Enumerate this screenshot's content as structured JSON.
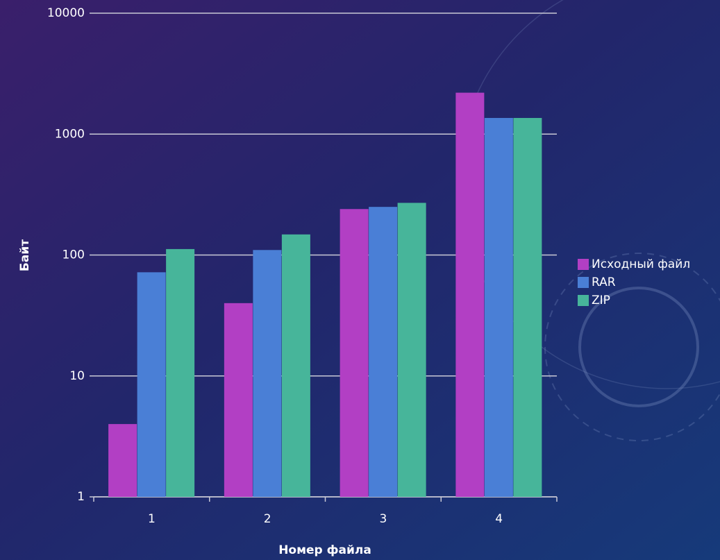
{
  "chart_data": {
    "type": "bar",
    "x_label": "Номер файла",
    "y_label": "Байт",
    "categories": [
      "1",
      "2",
      "3",
      "4"
    ],
    "series": [
      {
        "name": "Исходный файл",
        "color": "#b23fc4",
        "values": [
          4,
          40,
          240,
          2200
        ]
      },
      {
        "name": "RAR",
        "color": "#4a7fd6",
        "values": [
          72,
          110,
          250,
          1360
        ]
      },
      {
        "name": "ZIP",
        "color": "#47b59a",
        "values": [
          112,
          148,
          270,
          1360
        ]
      }
    ],
    "ylim": [
      1,
      10000
    ],
    "yticks": [
      1,
      10,
      100,
      1000,
      10000
    ],
    "log_y": true,
    "grid": true,
    "legend": "right"
  }
}
